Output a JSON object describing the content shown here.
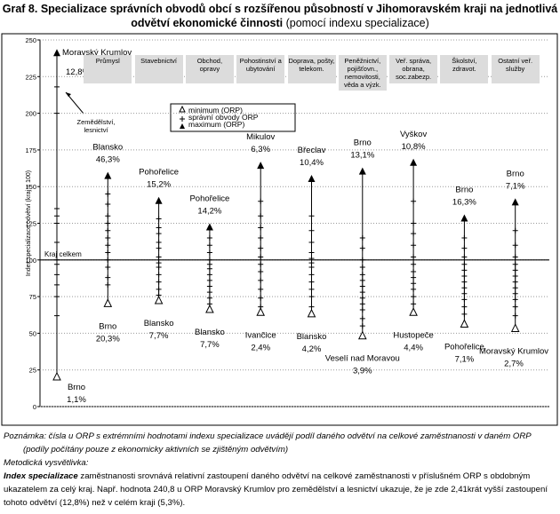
{
  "chart_data": {
    "type": "range",
    "title": "Graf 8. Specializace správních obvodů obcí s rozšířenou působností v Jihomoravském kraji na jednotlivá odvětví ekonomické činnosti",
    "subtitle": "(pomocí indexu specializace)",
    "y_label": "Index specializace odvětví (kraj = 100)",
    "categories": [
      "Zemědělství, lesnictví",
      "Průmysl",
      "Stavebnictví",
      "Obchod, opravy",
      "Pohostinství a ubytování",
      "Doprava, pošty, telekom.",
      "Peněžnictví, pojišťovn., nemovitosti, věda a výzk.",
      "Veř. správa, obrana, soc.zabezp.",
      "Školství, zdravot.",
      "Ostatní veř. služby"
    ],
    "reference": {
      "value": 100,
      "label": "Kraj celkem"
    },
    "ylim": [
      0,
      250
    ],
    "yticks": [
      0,
      25,
      50,
      75,
      100,
      125,
      150,
      175,
      200,
      225,
      250
    ],
    "grid": true,
    "series": [
      {
        "name": "minimum (ORP)",
        "color": "#000000",
        "values": [
          20,
          70,
          72,
          66,
          64,
          63,
          48,
          64,
          56,
          53
        ],
        "place_labels": [
          "Brno",
          "Brno",
          "Blansko",
          "Blansko",
          "Ivančice",
          "Blansko",
          "Veselí nad Moravou",
          "Hustopeče",
          "Pohořelice",
          "Moravský Krumlov"
        ],
        "share_labels": [
          "1,1%",
          "20,3%",
          "7,7%",
          "7,7%",
          "2,4%",
          "4,2%",
          "3,9%",
          "4,4%",
          "7,1%",
          "2,7%"
        ]
      },
      {
        "name": "správní obvody ORP",
        "color": "#000000",
        "values": [
          [
            218,
            200,
            135,
            130,
            125,
            112,
            100,
            97,
            90,
            83,
            75,
            62
          ],
          [
            145,
            138,
            130,
            125,
            120,
            115,
            110,
            105,
            100,
            95,
            88,
            83
          ],
          [
            128,
            122,
            118,
            112,
            108,
            102,
            98,
            95,
            90,
            85,
            80,
            76
          ],
          [
            115,
            110,
            105,
            100,
            97,
            94,
            90,
            86,
            82,
            78,
            74,
            70
          ],
          [
            140,
            130,
            122,
            115,
            108,
            102,
            97,
            92,
            86,
            80,
            74,
            68
          ],
          [
            130,
            120,
            112,
            105,
            101,
            98,
            95,
            90,
            85,
            80,
            75,
            68
          ],
          [
            115,
            108,
            100,
            95,
            90,
            86,
            82,
            78,
            74,
            70,
            66,
            60,
            55
          ],
          [
            140,
            125,
            118,
            110,
            102,
            97,
            92,
            88,
            84,
            80,
            75,
            70
          ],
          [
            115,
            108,
            102,
            97,
            93,
            89,
            85,
            81,
            77,
            73,
            68,
            63
          ],
          [
            120,
            110,
            102,
            97,
            93,
            89,
            85,
            81,
            77,
            73,
            68,
            62
          ]
        ]
      },
      {
        "name": "maximum (ORP)",
        "color": "#000000",
        "values": [
          240.8,
          157,
          140,
          122,
          164,
          155,
          160,
          166,
          128,
          139
        ],
        "place_labels": [
          "Moravský Krumlov",
          "Blansko",
          "Pohořelice",
          "Pohořelice",
          "Mikulov",
          "Břeclav",
          "Brno",
          "Vyškov",
          "Brno",
          "Brno"
        ],
        "share_labels": [
          "12,8%",
          "46,3%",
          "15,2%",
          "14,2%",
          "6,3%",
          "10,4%",
          "13,1%",
          "10,8%",
          "16,3%",
          "7,1%"
        ]
      }
    ]
  },
  "notes": {
    "note": "Poznámka: čísla u ORP s extrémními hodnotami indexu specializace uvádějí podíl daného odvětví na celkové zaměstnanosti v daném ORP (podíly počítány pouze z ekonomicky aktivních se zjištěným odvětvím)",
    "method_heading": "Metodická vysvětlivka:",
    "term": "Index specializace",
    "definition": " zaměstnanosti srovnává relativní zastoupení daného odvětví na celkové zaměstnanosti v příslušném ORP s obdobným ukazatelem za celý kraj. Např. hodnota 240,8 u ORP Moravský Krumlov pro zemědělství a lesnictví ukazuje, že je zde 2,41krát vyšší zastoupení tohoto odvětví (12,8%) než v celém kraji (5,3%)."
  }
}
